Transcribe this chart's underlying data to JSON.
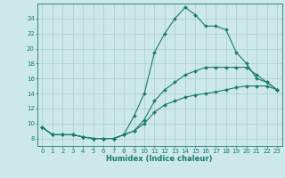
{
  "xlabel": "Humidex (Indice chaleur)",
  "bg_color": "#cce8e8",
  "line_color": "#1a7a6e",
  "grid_color": "#aacccc",
  "xlim": [
    -0.5,
    23.5
  ],
  "ylim": [
    7,
    26
  ],
  "yticks": [
    8,
    10,
    12,
    14,
    16,
    18,
    20,
    22,
    24
  ],
  "xticks": [
    0,
    1,
    2,
    3,
    4,
    5,
    6,
    7,
    8,
    9,
    10,
    11,
    12,
    13,
    14,
    15,
    16,
    17,
    18,
    19,
    20,
    21,
    22,
    23
  ],
  "line1_x": [
    0,
    1,
    2,
    3,
    4,
    5,
    6,
    7,
    8,
    9,
    10,
    11,
    12,
    13,
    14,
    15,
    16,
    17,
    18,
    19,
    20,
    21,
    22,
    23
  ],
  "line1_y": [
    9.5,
    8.5,
    8.5,
    8.5,
    8.2,
    8.0,
    8.0,
    8.0,
    8.5,
    11.0,
    14.0,
    19.5,
    22.0,
    24.0,
    25.5,
    24.5,
    23.0,
    23.0,
    22.5,
    19.5,
    18.0,
    16.0,
    15.5,
    14.5
  ],
  "line2_x": [
    0,
    1,
    2,
    3,
    4,
    5,
    6,
    7,
    8,
    9,
    10,
    11,
    12,
    13,
    14,
    15,
    16,
    17,
    18,
    19,
    20,
    21,
    22,
    23
  ],
  "line2_y": [
    9.5,
    8.5,
    8.5,
    8.5,
    8.2,
    8.0,
    8.0,
    8.0,
    8.5,
    9.0,
    10.5,
    13.0,
    14.5,
    15.5,
    16.5,
    17.0,
    17.5,
    17.5,
    17.5,
    17.5,
    17.5,
    16.5,
    15.5,
    14.5
  ],
  "line3_x": [
    0,
    1,
    2,
    3,
    4,
    5,
    6,
    7,
    8,
    9,
    10,
    11,
    12,
    13,
    14,
    15,
    16,
    17,
    18,
    19,
    20,
    21,
    22,
    23
  ],
  "line3_y": [
    9.5,
    8.5,
    8.5,
    8.5,
    8.2,
    8.0,
    8.0,
    8.0,
    8.5,
    9.0,
    10.0,
    11.5,
    12.5,
    13.0,
    13.5,
    13.8,
    14.0,
    14.2,
    14.5,
    14.8,
    15.0,
    15.0,
    15.0,
    14.5
  ],
  "tick_fontsize": 5.0,
  "xlabel_fontsize": 6.0,
  "marker_size": 2.0,
  "line_width": 0.8
}
